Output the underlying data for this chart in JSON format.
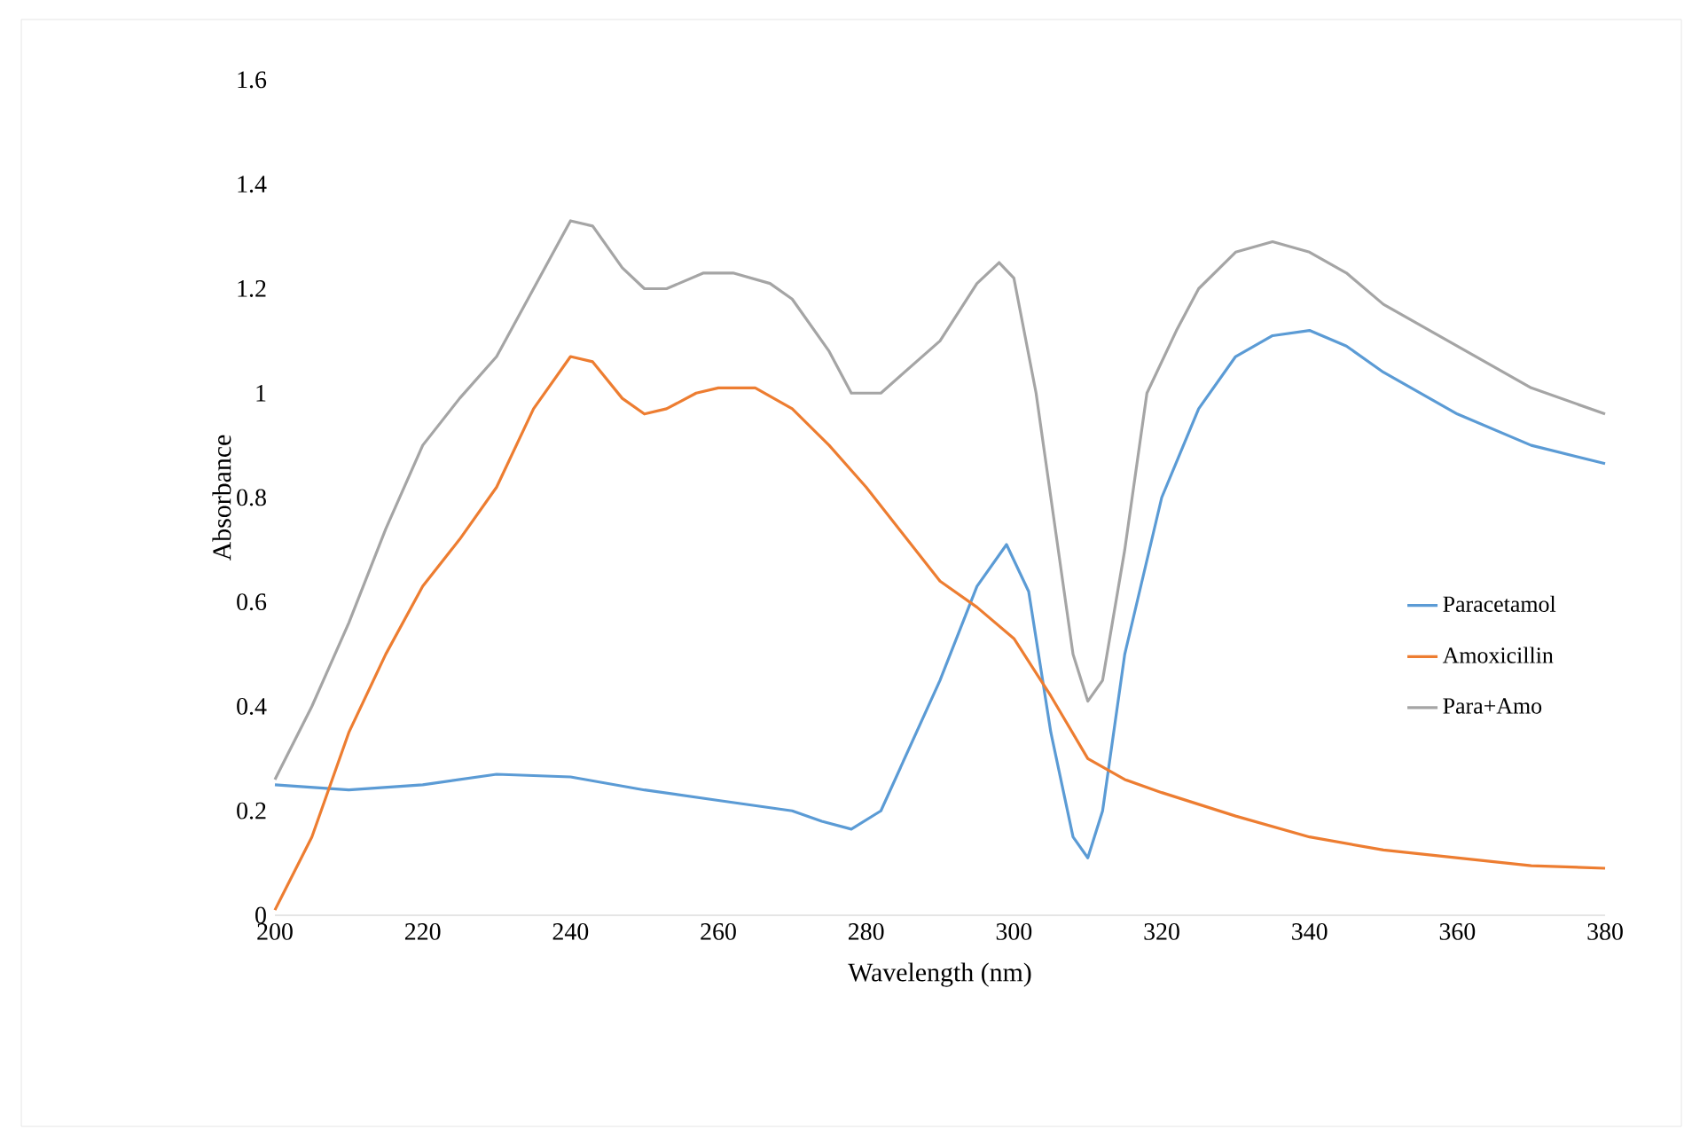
{
  "chart_data": {
    "type": "line",
    "xlabel": "Wavelength (nm)",
    "ylabel": "Absorbance",
    "xlim": [
      200,
      380
    ],
    "xticks": [
      200,
      220,
      240,
      260,
      280,
      300,
      320,
      340,
      360,
      380
    ],
    "ylim": [
      0,
      1.6
    ],
    "yticks": [
      {
        "value": 0,
        "label": "0"
      },
      {
        "value": 0.2,
        "label": "0.2"
      },
      {
        "value": 0.4,
        "label": "0.4"
      },
      {
        "value": 0.6,
        "label": "0.6"
      },
      {
        "value": 0.8,
        "label": "0.8"
      },
      {
        "value": 1,
        "label": "1"
      },
      {
        "value": 1.2,
        "label": "1.2"
      },
      {
        "value": 1.4,
        "label": "1.4"
      },
      {
        "value": 1.6,
        "label": "1.6"
      }
    ],
    "grid": false,
    "legend": "right",
    "marker": "none",
    "line_style": "solid",
    "series": [
      {
        "name": "Paracetamol",
        "color": "#5b9bd5",
        "x": [
          200,
          210,
          220,
          230,
          240,
          250,
          260,
          270,
          274,
          278,
          282,
          290,
          295,
          299,
          302,
          305,
          308,
          310,
          312,
          315,
          320,
          325,
          330,
          335,
          340,
          345,
          350,
          360,
          370,
          380
        ],
        "values": [
          0.25,
          0.24,
          0.25,
          0.27,
          0.265,
          0.24,
          0.22,
          0.2,
          0.18,
          0.165,
          0.2,
          0.45,
          0.63,
          0.71,
          0.62,
          0.35,
          0.15,
          0.11,
          0.2,
          0.5,
          0.8,
          0.97,
          1.07,
          1.11,
          1.12,
          1.09,
          1.04,
          0.96,
          0.9,
          0.865
        ]
      },
      {
        "name": "Amoxicillin",
        "color": "#ed7d31",
        "x": [
          200,
          205,
          210,
          215,
          220,
          225,
          230,
          235,
          240,
          243,
          247,
          250,
          253,
          257,
          260,
          265,
          270,
          275,
          280,
          285,
          290,
          295,
          300,
          305,
          310,
          315,
          320,
          330,
          340,
          350,
          360,
          370,
          380
        ],
        "values": [
          0.01,
          0.15,
          0.35,
          0.5,
          0.63,
          0.72,
          0.82,
          0.97,
          1.07,
          1.06,
          0.99,
          0.96,
          0.97,
          1.0,
          1.01,
          1.01,
          0.97,
          0.9,
          0.82,
          0.73,
          0.64,
          0.59,
          0.53,
          0.42,
          0.3,
          0.26,
          0.235,
          0.19,
          0.15,
          0.125,
          0.11,
          0.095,
          0.09
        ]
      },
      {
        "name": "Para+Amo",
        "color": "#a5a5a5",
        "x": [
          200,
          205,
          210,
          215,
          220,
          225,
          230,
          235,
          240,
          243,
          247,
          250,
          253,
          258,
          262,
          267,
          270,
          275,
          278,
          282,
          286,
          290,
          295,
          298,
          300,
          303,
          306,
          308,
          310,
          312,
          315,
          318,
          322,
          325,
          330,
          335,
          340,
          345,
          350,
          360,
          370,
          380
        ],
        "values": [
          0.26,
          0.4,
          0.56,
          0.74,
          0.9,
          0.99,
          1.07,
          1.2,
          1.33,
          1.32,
          1.24,
          1.2,
          1.2,
          1.23,
          1.23,
          1.21,
          1.18,
          1.08,
          1.0,
          1.0,
          1.05,
          1.1,
          1.21,
          1.25,
          1.22,
          1.0,
          0.7,
          0.5,
          0.41,
          0.45,
          0.7,
          1.0,
          1.12,
          1.2,
          1.27,
          1.29,
          1.27,
          1.23,
          1.17,
          1.09,
          1.01,
          0.96
        ]
      }
    ]
  }
}
